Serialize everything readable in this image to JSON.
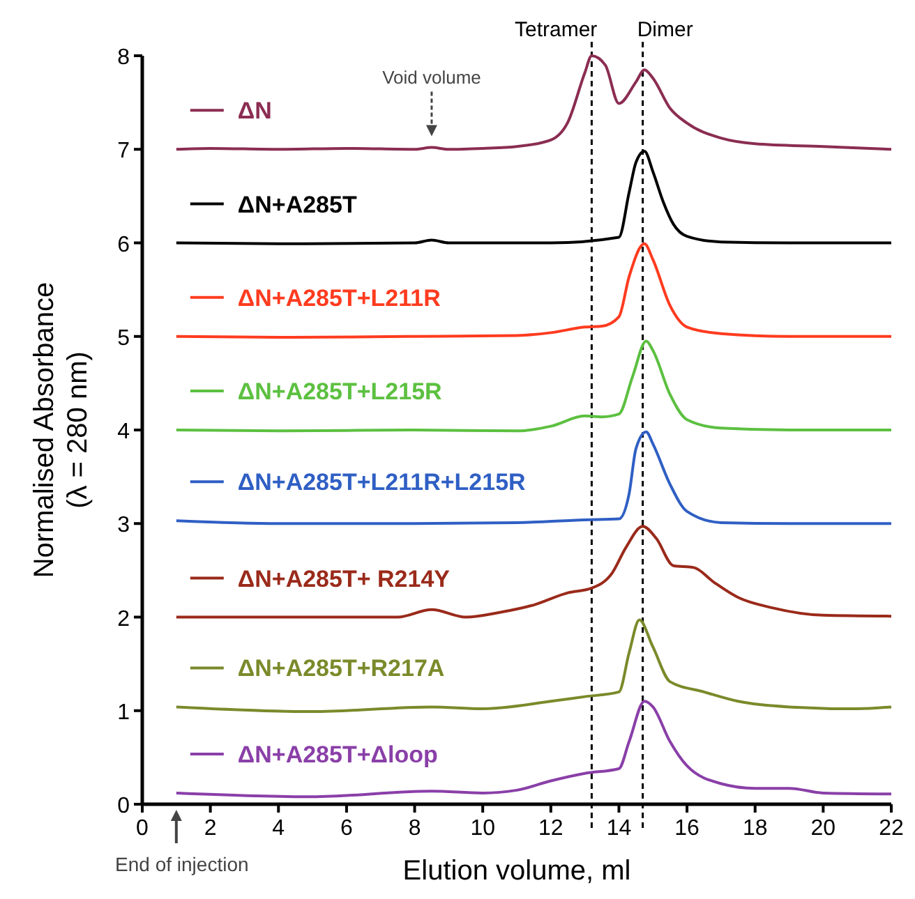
{
  "chart_data": {
    "type": "line",
    "xlabel": "Elution volume, ml",
    "ylabel": "Normalised Absorbance\n(λ = 280 nm)",
    "xlim": [
      0,
      22
    ],
    "xticks": [
      0,
      2,
      4,
      6,
      8,
      10,
      12,
      14,
      16,
      18,
      20,
      22
    ],
    "ylim": [
      0,
      8
    ],
    "yticks": [
      0,
      1,
      2,
      3,
      4,
      5,
      6,
      7,
      8
    ],
    "grid": false,
    "legend": "left",
    "marker": "none",
    "line_style": "solid",
    "ref_lines": [
      {
        "axis": "x",
        "value": 13.2,
        "label": "Tetramer",
        "color": "#000000",
        "line_style": "dashed"
      },
      {
        "axis": "x",
        "value": 14.7,
        "label": "Dimer",
        "color": "#000000",
        "line_style": "dashed"
      }
    ],
    "annotations": [
      "Void volume",
      "End of injection"
    ],
    "series": [
      {
        "name": "ΔN",
        "color": "#8b2d52",
        "x": [
          1,
          2,
          4,
          6,
          8,
          8.5,
          9,
          10,
          11,
          12,
          12.5,
          13,
          13.2,
          13.6,
          14,
          14.5,
          14.75,
          15,
          15.5,
          16,
          17,
          18,
          20,
          22
        ],
        "values": [
          7.0,
          7.01,
          7.0,
          7.01,
          7.0,
          7.02,
          7.0,
          7.01,
          7.03,
          7.1,
          7.29,
          7.82,
          8.0,
          7.9,
          7.49,
          7.72,
          7.85,
          7.76,
          7.44,
          7.28,
          7.12,
          7.06,
          7.03,
          7.0
        ]
      },
      {
        "name": "ΔN+A285T",
        "color": "#000000",
        "x": [
          1,
          4,
          8,
          8.5,
          9,
          12,
          14,
          14.3,
          14.5,
          14.75,
          15,
          15.3,
          15.6,
          16,
          17,
          19,
          22
        ],
        "values": [
          6.0,
          5.99,
          6.0,
          6.03,
          6.0,
          6.0,
          6.06,
          6.54,
          6.86,
          6.98,
          6.76,
          6.44,
          6.2,
          6.07,
          6.01,
          6.0,
          6.0
        ]
      },
      {
        "name": "ΔN+A285T+L211R",
        "color": "#ff3b1f",
        "x": [
          1,
          4,
          8,
          11,
          12,
          13,
          13.5,
          14,
          14.3,
          14.75,
          15,
          15.5,
          16,
          17,
          19,
          22
        ],
        "values": [
          5.0,
          4.99,
          5.0,
          5.01,
          5.04,
          5.1,
          5.11,
          5.21,
          5.64,
          5.99,
          5.82,
          5.33,
          5.1,
          5.03,
          5.0,
          5.0
        ]
      },
      {
        "name": "ΔN+A285T+L215R",
        "color": "#5cc040",
        "x": [
          1,
          4,
          8,
          11,
          12,
          13,
          13.5,
          14,
          14.4,
          14.8,
          15,
          15.5,
          16,
          17,
          19,
          22
        ],
        "values": [
          4.0,
          3.99,
          4.0,
          3.99,
          4.04,
          4.15,
          4.14,
          4.17,
          4.57,
          4.95,
          4.85,
          4.38,
          4.11,
          4.02,
          4.0,
          4.0
        ]
      },
      {
        "name": "ΔN+A285T+L211R+L215R",
        "color": "#2f5fc4",
        "x": [
          1,
          4,
          8,
          11,
          13,
          14,
          14.3,
          14.5,
          14.8,
          15,
          15.5,
          16,
          17,
          19,
          22
        ],
        "values": [
          3.03,
          3.0,
          3.0,
          3.01,
          3.04,
          3.05,
          3.32,
          3.8,
          3.98,
          3.85,
          3.42,
          3.13,
          3.01,
          3.0,
          3.0
        ]
      },
      {
        "name": "ΔN+A285T+ R214Y",
        "color": "#9a2a1a",
        "x": [
          1,
          4,
          7.5,
          8.5,
          9.5,
          10.5,
          11.5,
          12.5,
          13.2,
          13.8,
          14.2,
          14.7,
          15.1,
          15.6,
          16.2,
          16.8,
          17.5,
          18.5,
          20,
          22
        ],
        "values": [
          2.0,
          2.0,
          2.0,
          2.08,
          2.0,
          2.05,
          2.13,
          2.26,
          2.31,
          2.47,
          2.74,
          2.97,
          2.84,
          2.55,
          2.53,
          2.37,
          2.21,
          2.1,
          2.02,
          2.01
        ]
      },
      {
        "name": "ΔN+A285T+R217A",
        "color": "#7a8a2a",
        "x": [
          1,
          5,
          8.5,
          10,
          12,
          13,
          14,
          14.3,
          14.6,
          15,
          15.5,
          16.5,
          17.5,
          19,
          21,
          22
        ],
        "values": [
          1.04,
          0.99,
          1.04,
          1.02,
          1.1,
          1.15,
          1.2,
          1.62,
          1.97,
          1.68,
          1.31,
          1.2,
          1.1,
          1.04,
          1.02,
          1.04
        ]
      },
      {
        "name": "ΔN+A285T+Δloop",
        "color": "#8a3fa8",
        "x": [
          1,
          5,
          8.5,
          10,
          11,
          12,
          13,
          14,
          14.3,
          14.75,
          15,
          15.5,
          16,
          17,
          18,
          19,
          20,
          22
        ],
        "values": [
          0.12,
          0.08,
          0.14,
          0.12,
          0.15,
          0.25,
          0.33,
          0.38,
          0.67,
          1.1,
          1.04,
          0.67,
          0.41,
          0.22,
          0.17,
          0.17,
          0.12,
          0.11
        ]
      }
    ]
  }
}
